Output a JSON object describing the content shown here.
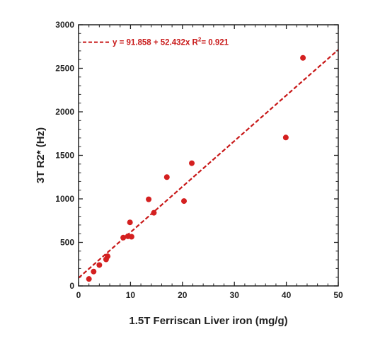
{
  "chart_data": {
    "type": "scatter",
    "xlabel": "1.5T Ferriscan Liver iron (mg/g)",
    "ylabel": "3T R2* (Hz)",
    "xlim": [
      0,
      50
    ],
    "ylim": [
      0,
      3000
    ],
    "x_ticks": [
      0,
      10,
      20,
      30,
      40,
      50
    ],
    "y_ticks": [
      0,
      500,
      1000,
      1500,
      2000,
      2500,
      3000
    ],
    "x_tick_labels": [
      "0",
      "10",
      "20",
      "30",
      "40",
      "50"
    ],
    "y_tick_labels": [
      "0",
      "500",
      "1000",
      "1500",
      "2000",
      "2500",
      "3000"
    ],
    "grid": false,
    "legend_position": "top-left",
    "marker_color": "#d42020",
    "fit_color": "#c81818",
    "points": [
      {
        "x": 2.0,
        "y": 80
      },
      {
        "x": 2.9,
        "y": 165
      },
      {
        "x": 4.0,
        "y": 240
      },
      {
        "x": 5.3,
        "y": 305
      },
      {
        "x": 5.6,
        "y": 340
      },
      {
        "x": 8.6,
        "y": 555
      },
      {
        "x": 9.5,
        "y": 570
      },
      {
        "x": 10.2,
        "y": 565
      },
      {
        "x": 9.9,
        "y": 730
      },
      {
        "x": 13.5,
        "y": 995
      },
      {
        "x": 14.5,
        "y": 840
      },
      {
        "x": 17.0,
        "y": 1250
      },
      {
        "x": 20.3,
        "y": 975
      },
      {
        "x": 21.8,
        "y": 1410
      },
      {
        "x": 39.9,
        "y": 1705
      },
      {
        "x": 43.2,
        "y": 2620
      }
    ],
    "fit": {
      "intercept": 91.858,
      "slope": 52.432,
      "r2": 0.921,
      "label_prefix": "y = 91.858 + 52.432x   R",
      "label_sup": "2",
      "label_suffix": "= 0.921"
    }
  }
}
